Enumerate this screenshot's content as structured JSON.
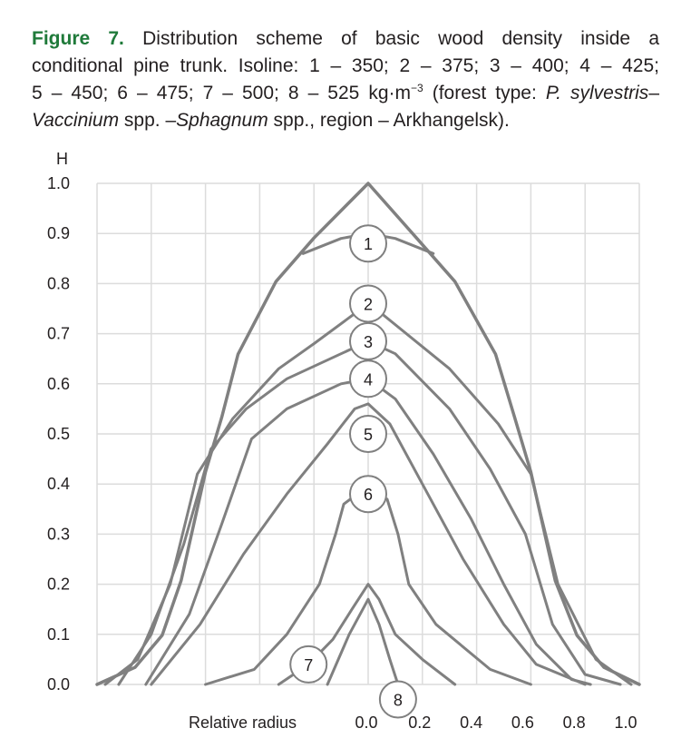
{
  "caption": {
    "figure_label": "Figure 7.",
    "line1": " Distribution scheme of basic wood density inside a",
    "line2": "conditional pine trunk. Isoline: 1 – 350; 2 – 375; 3 – 400; 4 – 425;",
    "line3_a": "5 – 450; 6 – 475; 7 – 500; 8 – 525 kg·m",
    "line3_sup": "−3",
    "line3_b": " (forest type: ",
    "line3_it": "P. sylvestris",
    "line3_c": "–",
    "line4_it1": "Vaccinium",
    "line4_a": " spp. –",
    "line4_it2": "Sphagnum",
    "line4_b": " spp., region – Arkhangelsk)."
  },
  "chart_data": {
    "type": "line",
    "title": "Distribution scheme of basic wood density inside a conditional pine trunk",
    "xlabel": "Relative radius",
    "ylabel": "H",
    "xlim": [
      -1.0,
      1.0
    ],
    "ylim": [
      0.0,
      1.0
    ],
    "grid": true,
    "x_ticks": [
      "0.0",
      "0.2",
      "0.4",
      "0.6",
      "0.8",
      "1.0"
    ],
    "x_tick_values": [
      0.0,
      0.2,
      0.4,
      0.6,
      0.8,
      1.0
    ],
    "y_ticks": [
      "0.0",
      "0.1",
      "0.2",
      "0.3",
      "0.4",
      "0.5",
      "0.6",
      "0.7",
      "0.8",
      "0.9",
      "1.0"
    ],
    "colors": {
      "line": "#808080",
      "grid": "#dcdcdc",
      "accent": "#1f7a3a"
    },
    "series": [
      {
        "name": "outline",
        "label": "",
        "points": [
          [
            -1,
            0
          ],
          [
            -0.86,
            0.034
          ],
          [
            -0.76,
            0.098
          ],
          [
            -0.69,
            0.207
          ],
          [
            -0.6,
            0.424
          ],
          [
            -0.54,
            0.533
          ],
          [
            -0.48,
            0.659
          ],
          [
            -0.34,
            0.804
          ],
          [
            -0.2,
            0.891
          ],
          [
            0,
            1.0
          ],
          [
            0.18,
            0.89
          ],
          [
            0.32,
            0.804
          ],
          [
            0.47,
            0.659
          ],
          [
            0.54,
            0.533
          ],
          [
            0.6,
            0.424
          ],
          [
            0.69,
            0.207
          ],
          [
            0.77,
            0.098
          ],
          [
            0.87,
            0.034
          ],
          [
            1,
            0
          ]
        ]
      },
      {
        "name": "350",
        "label": "1",
        "label_at": [
          0,
          0.88
        ],
        "points": [
          [
            -0.24,
            0.86
          ],
          [
            -0.1,
            0.89
          ],
          [
            0,
            0.9
          ],
          [
            0.1,
            0.89
          ],
          [
            0.24,
            0.86
          ]
        ]
      },
      {
        "name": "375",
        "label": "2",
        "label_at": [
          0,
          0.76
        ],
        "points": [
          [
            -0.97,
            0
          ],
          [
            -0.85,
            0.05
          ],
          [
            -0.73,
            0.2
          ],
          [
            -0.63,
            0.42
          ],
          [
            -0.5,
            0.53
          ],
          [
            -0.33,
            0.63
          ],
          [
            -0.2,
            0.68
          ],
          [
            -0.05,
            0.74
          ],
          [
            0,
            0.76
          ],
          [
            0.05,
            0.74
          ],
          [
            0.3,
            0.63
          ],
          [
            0.48,
            0.52
          ],
          [
            0.6,
            0.42
          ],
          [
            0.7,
            0.2
          ],
          [
            0.84,
            0.05
          ],
          [
            0.97,
            0
          ]
        ]
      },
      {
        "name": "400",
        "label": "3",
        "label_at": [
          0,
          0.685
        ],
        "points": [
          [
            -0.92,
            0
          ],
          [
            -0.8,
            0.1
          ],
          [
            -0.68,
            0.28
          ],
          [
            -0.58,
            0.47
          ],
          [
            -0.45,
            0.55
          ],
          [
            -0.3,
            0.61
          ],
          [
            -0.1,
            0.66
          ],
          [
            0,
            0.685
          ],
          [
            0.1,
            0.66
          ],
          [
            0.3,
            0.55
          ],
          [
            0.45,
            0.43
          ],
          [
            0.58,
            0.3
          ],
          [
            0.68,
            0.12
          ],
          [
            0.8,
            0.02
          ],
          [
            0.93,
            0
          ]
        ]
      },
      {
        "name": "425",
        "label": "4",
        "label_at": [
          0,
          0.61
        ],
        "points": [
          [
            -0.82,
            0
          ],
          [
            -0.66,
            0.14
          ],
          [
            -0.54,
            0.32
          ],
          [
            -0.43,
            0.49
          ],
          [
            -0.3,
            0.55
          ],
          [
            -0.1,
            0.6
          ],
          [
            0,
            0.61
          ],
          [
            0.1,
            0.57
          ],
          [
            0.24,
            0.46
          ],
          [
            0.38,
            0.33
          ],
          [
            0.5,
            0.2
          ],
          [
            0.62,
            0.08
          ],
          [
            0.75,
            0.01
          ],
          [
            0.82,
            0
          ]
        ]
      },
      {
        "name": "450",
        "label": "5",
        "label_at": [
          0,
          0.5
        ],
        "points": [
          [
            -0.8,
            0
          ],
          [
            -0.62,
            0.12
          ],
          [
            -0.46,
            0.26
          ],
          [
            -0.3,
            0.38
          ],
          [
            -0.15,
            0.48
          ],
          [
            -0.05,
            0.55
          ],
          [
            0,
            0.56
          ],
          [
            0.08,
            0.52
          ],
          [
            0.2,
            0.4
          ],
          [
            0.35,
            0.25
          ],
          [
            0.5,
            0.12
          ],
          [
            0.62,
            0.04
          ],
          [
            0.8,
            0
          ]
        ]
      },
      {
        "name": "475",
        "label": "6",
        "label_at": [
          0,
          0.38
        ],
        "points": [
          [
            -0.6,
            0
          ],
          [
            -0.42,
            0.03
          ],
          [
            -0.3,
            0.1
          ],
          [
            -0.18,
            0.2
          ],
          [
            -0.12,
            0.3
          ],
          [
            -0.09,
            0.36
          ],
          [
            -0.04,
            0.38
          ],
          [
            0,
            0.38
          ],
          [
            0.07,
            0.37
          ],
          [
            0.11,
            0.3
          ],
          [
            0.15,
            0.2
          ],
          [
            0.25,
            0.12
          ],
          [
            0.45,
            0.03
          ],
          [
            0.6,
            0
          ]
        ]
      },
      {
        "name": "500",
        "label": "7",
        "label_at": [
          -0.22,
          0.04
        ],
        "points": [
          [
            -0.33,
            0
          ],
          [
            -0.22,
            0.04
          ],
          [
            -0.13,
            0.09
          ],
          [
            -0.06,
            0.15
          ],
          [
            0,
            0.2
          ],
          [
            0.04,
            0.17
          ],
          [
            0.1,
            0.1
          ],
          [
            0.2,
            0.05
          ],
          [
            0.32,
            0
          ]
        ]
      },
      {
        "name": "525",
        "label": "8",
        "label_at": [
          0.11,
          -0.03
        ],
        "points": [
          [
            -0.15,
            0
          ],
          [
            -0.07,
            0.1
          ],
          [
            0,
            0.17
          ],
          [
            0.04,
            0.12
          ],
          [
            0.08,
            0.05
          ],
          [
            0.11,
            0.0
          ]
        ]
      }
    ]
  }
}
